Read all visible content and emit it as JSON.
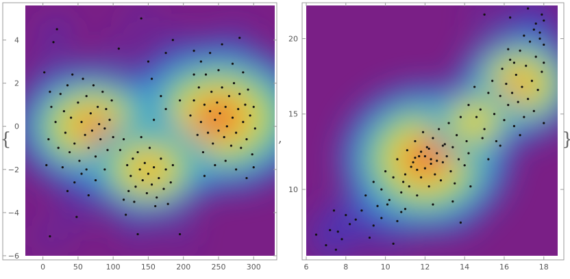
{
  "colors": {
    "background": "#7a1f86",
    "density_ramp": [
      "#7a1f86",
      "#3b3fc7",
      "#2f8de0",
      "#45c0b0",
      "#9bd35a",
      "#f3df3b",
      "#f79a2a",
      "#e4262a"
    ],
    "points": "#111111"
  },
  "chart_data": [
    {
      "type": "scatter",
      "title": "",
      "xlabel": "",
      "ylabel": "",
      "xlim": [
        -25,
        330
      ],
      "ylim": [
        -6,
        5.6
      ],
      "xticks": [
        0,
        50,
        100,
        150,
        200,
        250,
        300
      ],
      "yticks": [
        -6,
        -4,
        -2,
        0,
        2,
        4
      ],
      "density_peaks": [
        {
          "x": 250,
          "y": 0.4,
          "weight": 1.0
        },
        {
          "x": 70,
          "y": 0.0,
          "weight": 0.75
        },
        {
          "x": 150,
          "y": -2.0,
          "weight": 0.55
        }
      ],
      "points": [
        [
          5,
          -1.8
        ],
        [
          10,
          -5.1
        ],
        [
          15,
          3.9
        ],
        [
          20,
          4.5
        ],
        [
          48,
          -4.2
        ],
        [
          65,
          -3.2
        ],
        [
          118,
          -4.1
        ],
        [
          135,
          -5.0
        ],
        [
          195,
          -5.0
        ],
        [
          140,
          5.0
        ],
        [
          185,
          4.0
        ],
        [
          280,
          4.1
        ],
        [
          108,
          3.6
        ],
        [
          215,
          2.4
        ],
        [
          10,
          1.6
        ],
        [
          2,
          2.5
        ],
        [
          12,
          0.9
        ],
        [
          18,
          0.2
        ],
        [
          8,
          -0.6
        ],
        [
          22,
          -1.0
        ],
        [
          25,
          1.5
        ],
        [
          30,
          0.7
        ],
        [
          32,
          -0.3
        ],
        [
          35,
          1.9
        ],
        [
          38,
          -1.2
        ],
        [
          40,
          0.4
        ],
        [
          42,
          2.4
        ],
        [
          45,
          -0.8
        ],
        [
          50,
          1.1
        ],
        [
          52,
          -1.6
        ],
        [
          55,
          0.2
        ],
        [
          57,
          2.2
        ],
        [
          60,
          -0.4
        ],
        [
          62,
          1.4
        ],
        [
          65,
          -1.0
        ],
        [
          68,
          0.6
        ],
        [
          70,
          -0.2
        ],
        [
          72,
          1.9
        ],
        [
          75,
          -1.4
        ],
        [
          78,
          0.9
        ],
        [
          80,
          0.1
        ],
        [
          82,
          -0.6
        ],
        [
          85,
          1.6
        ],
        [
          88,
          -0.1
        ],
        [
          90,
          0.8
        ],
        [
          92,
          -1.1
        ],
        [
          95,
          0.3
        ],
        [
          98,
          1.2
        ],
        [
          100,
          -0.5
        ],
        [
          55,
          -2.2
        ],
        [
          62,
          -2.0
        ],
        [
          75,
          -2.5
        ],
        [
          88,
          -2.0
        ],
        [
          45,
          -2.6
        ],
        [
          35,
          -3.0
        ],
        [
          28,
          -1.9
        ],
        [
          110,
          -1.1
        ],
        [
          115,
          -0.6
        ],
        [
          120,
          -1.8
        ],
        [
          125,
          -2.3
        ],
        [
          128,
          -1.5
        ],
        [
          132,
          -2.8
        ],
        [
          135,
          -1.2
        ],
        [
          138,
          -2.0
        ],
        [
          142,
          -2.5
        ],
        [
          145,
          -1.7
        ],
        [
          148,
          -3.1
        ],
        [
          150,
          -2.2
        ],
        [
          152,
          -1.0
        ],
        [
          155,
          -2.7
        ],
        [
          158,
          -1.9
        ],
        [
          162,
          -3.3
        ],
        [
          165,
          -2.4
        ],
        [
          168,
          -1.5
        ],
        [
          172,
          -2.9
        ],
        [
          175,
          -2.0
        ],
        [
          178,
          -3.6
        ],
        [
          182,
          -2.6
        ],
        [
          185,
          -1.8
        ],
        [
          122,
          -3.0
        ],
        [
          130,
          -3.5
        ],
        [
          160,
          -3.7
        ],
        [
          115,
          -3.4
        ],
        [
          140,
          -0.5
        ],
        [
          158,
          0.3
        ],
        [
          175,
          0.8
        ],
        [
          168,
          1.4
        ],
        [
          195,
          1.2
        ],
        [
          150,
          3.0
        ],
        [
          175,
          3.4
        ],
        [
          155,
          2.2
        ],
        [
          210,
          0.5
        ],
        [
          215,
          1.2
        ],
        [
          220,
          -0.4
        ],
        [
          222,
          1.8
        ],
        [
          225,
          0.2
        ],
        [
          228,
          -1.2
        ],
        [
          230,
          1.0
        ],
        [
          232,
          2.4
        ],
        [
          235,
          -0.3
        ],
        [
          238,
          0.7
        ],
        [
          240,
          1.6
        ],
        [
          242,
          -0.8
        ],
        [
          245,
          0.3
        ],
        [
          248,
          1.1
        ],
        [
          250,
          -0.2
        ],
        [
          252,
          0.6
        ],
        [
          255,
          1.8
        ],
        [
          258,
          -0.5
        ],
        [
          260,
          0.9
        ],
        [
          262,
          0.0
        ],
        [
          265,
          1.4
        ],
        [
          268,
          -0.9
        ],
        [
          270,
          0.4
        ],
        [
          272,
          2.0
        ],
        [
          275,
          -0.3
        ],
        [
          278,
          0.8
        ],
        [
          280,
          1.5
        ],
        [
          282,
          -1.0
        ],
        [
          285,
          0.2
        ],
        [
          288,
          1.0
        ],
        [
          290,
          -0.6
        ],
        [
          292,
          1.7
        ],
        [
          295,
          0.5
        ],
        [
          298,
          -1.3
        ],
        [
          300,
          0.9
        ],
        [
          302,
          -0.1
        ],
        [
          260,
          -1.6
        ],
        [
          245,
          -1.8
        ],
        [
          275,
          -2.0
        ],
        [
          230,
          -2.3
        ],
        [
          290,
          -2.4
        ],
        [
          300,
          -1.9
        ],
        [
          250,
          2.6
        ],
        [
          270,
          2.9
        ],
        [
          285,
          2.5
        ],
        [
          225,
          3.0
        ],
        [
          255,
          3.8
        ],
        [
          238,
          3.4
        ],
        [
          215,
          3.5
        ]
      ]
    },
    {
      "type": "scatter",
      "title": "",
      "xlabel": "",
      "ylabel": "",
      "xlim": [
        6,
        18.7
      ],
      "ylim": [
        5.6,
        22.2
      ],
      "xticks": [
        6,
        8,
        10,
        12,
        14,
        16,
        18
      ],
      "yticks": [
        10,
        15,
        20
      ],
      "density_peaks": [
        {
          "x": 12.0,
          "y": 12.0,
          "weight": 1.0
        },
        {
          "x": 16.8,
          "y": 17.0,
          "weight": 0.6
        },
        {
          "x": 14.5,
          "y": 14.5,
          "weight": 0.35
        }
      ],
      "points": [
        [
          6.5,
          7.0
        ],
        [
          7.0,
          6.3
        ],
        [
          7.2,
          7.3
        ],
        [
          7.5,
          6.0
        ],
        [
          7.4,
          8.6
        ],
        [
          7.6,
          7.2
        ],
        [
          7.8,
          6.7
        ],
        [
          8.0,
          8.3
        ],
        [
          8.2,
          7.7
        ],
        [
          8.5,
          8.0
        ],
        [
          8.8,
          8.6
        ],
        [
          9.2,
          6.8
        ],
        [
          9.4,
          7.6
        ],
        [
          9.6,
          8.9
        ],
        [
          9.8,
          8.1
        ],
        [
          10.1,
          9.0
        ],
        [
          10.4,
          6.4
        ],
        [
          10.6,
          7.9
        ],
        [
          10.8,
          8.5
        ],
        [
          9.0,
          9.6
        ],
        [
          9.4,
          10.5
        ],
        [
          9.8,
          10.0
        ],
        [
          10.0,
          11.2
        ],
        [
          10.2,
          9.3
        ],
        [
          10.4,
          10.8
        ],
        [
          10.6,
          12.0
        ],
        [
          10.8,
          9.8
        ],
        [
          11.0,
          11.0
        ],
        [
          11.1,
          12.6
        ],
        [
          11.2,
          10.2
        ],
        [
          11.4,
          11.8
        ],
        [
          11.5,
          13.2
        ],
        [
          11.6,
          9.6
        ],
        [
          11.7,
          12.2
        ],
        [
          11.8,
          10.8
        ],
        [
          11.9,
          13.8
        ],
        [
          12.0,
          11.4
        ],
        [
          12.1,
          12.8
        ],
        [
          12.2,
          10.2
        ],
        [
          12.3,
          12.0
        ],
        [
          12.4,
          13.4
        ],
        [
          12.5,
          11.0
        ],
        [
          12.6,
          12.4
        ],
        [
          12.7,
          14.0
        ],
        [
          12.8,
          10.6
        ],
        [
          12.9,
          11.8
        ],
        [
          13.0,
          13.0
        ],
        [
          13.1,
          12.2
        ],
        [
          13.2,
          14.4
        ],
        [
          13.3,
          11.2
        ],
        [
          13.4,
          12.8
        ],
        [
          13.5,
          10.4
        ],
        [
          13.6,
          13.6
        ],
        [
          13.7,
          12.0
        ],
        [
          13.8,
          14.8
        ],
        [
          14.0,
          11.6
        ],
        [
          14.1,
          13.2
        ],
        [
          14.2,
          12.4
        ],
        [
          11.3,
          11.5
        ],
        [
          11.6,
          11.3
        ],
        [
          12.0,
          12.2
        ],
        [
          12.3,
          11.7
        ],
        [
          11.8,
          12.5
        ],
        [
          12.6,
          11.9
        ],
        [
          11.5,
          12.1
        ],
        [
          12.2,
          12.7
        ],
        [
          10.9,
          10.5
        ],
        [
          12.9,
          12.9
        ],
        [
          13.4,
          9.2
        ],
        [
          12.4,
          9.0
        ],
        [
          11.0,
          8.7
        ],
        [
          14.3,
          10.2
        ],
        [
          13.8,
          7.8
        ],
        [
          14.8,
          15.3
        ],
        [
          15.0,
          14.0
        ],
        [
          15.2,
          16.4
        ],
        [
          14.5,
          16.8
        ],
        [
          14.6,
          14.8
        ],
        [
          15.4,
          17.2
        ],
        [
          15.5,
          15.0
        ],
        [
          15.6,
          13.2
        ],
        [
          15.8,
          16.2
        ],
        [
          15.9,
          18.0
        ],
        [
          16.0,
          14.6
        ],
        [
          16.1,
          17.0
        ],
        [
          16.2,
          15.6
        ],
        [
          16.3,
          18.6
        ],
        [
          16.4,
          16.4
        ],
        [
          16.5,
          14.2
        ],
        [
          16.6,
          17.6
        ],
        [
          16.7,
          15.8
        ],
        [
          16.8,
          19.2
        ],
        [
          16.9,
          16.8
        ],
        [
          17.0,
          14.8
        ],
        [
          17.1,
          18.2
        ],
        [
          17.2,
          16.0
        ],
        [
          17.3,
          19.8
        ],
        [
          17.4,
          17.2
        ],
        [
          17.5,
          15.2
        ],
        [
          17.6,
          18.8
        ],
        [
          17.7,
          16.6
        ],
        [
          17.8,
          20.4
        ],
        [
          17.9,
          17.8
        ],
        [
          18.0,
          14.4
        ],
        [
          18.0,
          19.6
        ],
        [
          17.9,
          21.6
        ],
        [
          17.8,
          20.0
        ],
        [
          17.6,
          21.0
        ],
        [
          18.0,
          21.2
        ],
        [
          17.2,
          22.0
        ],
        [
          17.5,
          20.6
        ],
        [
          16.3,
          21.4
        ],
        [
          15.0,
          21.6
        ],
        [
          18.0,
          18.4
        ],
        [
          16.8,
          13.6
        ],
        [
          15.8,
          12.9
        ],
        [
          15.2,
          12.0
        ],
        [
          16.5,
          18.4
        ],
        [
          17.0,
          20.2
        ],
        [
          14.2,
          15.6
        ],
        [
          14.9,
          13.4
        ],
        [
          16.2,
          19.3
        ]
      ]
    }
  ]
}
